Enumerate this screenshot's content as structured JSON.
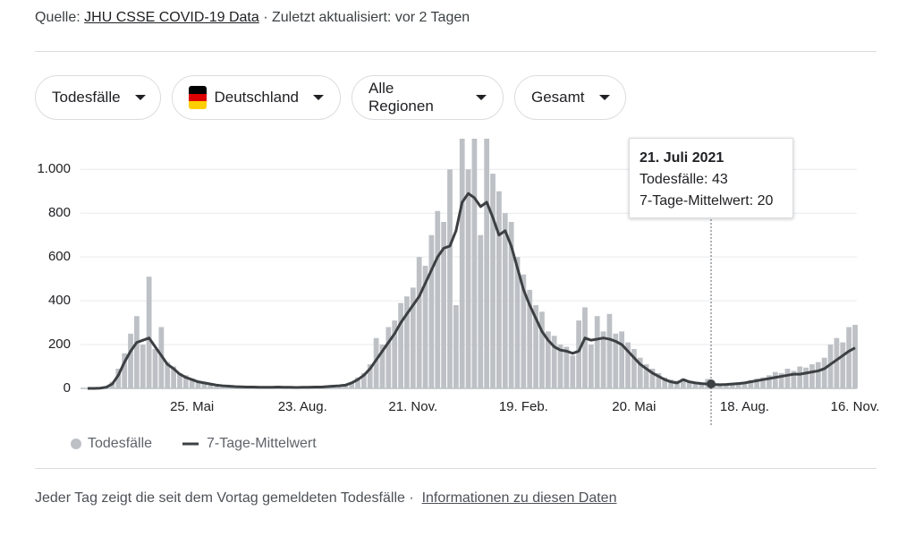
{
  "header": {
    "source_label": "Quelle:",
    "source_link": "JHU CSSE COVID-19 Data",
    "updated": "· Zuletzt aktualisiert: vor 2 Tagen"
  },
  "filters": [
    "Todesfälle",
    "Deutschland",
    "Alle Regionen",
    "Gesamt"
  ],
  "tooltip": {
    "title": "21. Juli 2021",
    "lines": [
      "Todesfälle: 43",
      "7-Tage-Mittelwert: 20"
    ]
  },
  "chart_data": {
    "type": "bar",
    "categories": [
      null,
      null,
      null,
      null,
      null,
      null,
      null,
      null,
      null,
      null,
      null,
      null,
      null,
      null,
      null,
      null,
      null,
      "25. Mai",
      null,
      null,
      null,
      null,
      null,
      null,
      null,
      null,
      null,
      null,
      null,
      null,
      null,
      null,
      null,
      null,
      null,
      "23. Aug.",
      null,
      null,
      null,
      null,
      null,
      null,
      null,
      null,
      null,
      null,
      null,
      null,
      null,
      null,
      null,
      null,
      null,
      "21. Nov.",
      null,
      null,
      null,
      null,
      null,
      null,
      null,
      null,
      null,
      null,
      null,
      null,
      null,
      null,
      null,
      null,
      null,
      "19. Feb.",
      null,
      null,
      null,
      null,
      null,
      null,
      null,
      null,
      null,
      null,
      null,
      null,
      null,
      null,
      null,
      null,
      null,
      "20. Mai",
      null,
      null,
      null,
      null,
      null,
      null,
      null,
      null,
      null,
      null,
      null,
      null,
      null,
      null,
      null,
      null,
      null,
      "18. Aug.",
      null,
      null,
      null,
      null,
      null,
      null,
      null,
      null,
      null,
      null,
      null,
      null,
      null,
      null,
      null,
      null,
      null,
      "16. Nov."
    ],
    "series": [
      {
        "name": "Todesfälle",
        "type": "bar",
        "color": "#bdc1c6",
        "values": [
          0,
          0,
          2,
          8,
          30,
          90,
          160,
          250,
          330,
          200,
          510,
          180,
          280,
          120,
          100,
          70,
          60,
          45,
          35,
          30,
          22,
          18,
          14,
          12,
          9,
          8,
          7,
          6,
          6,
          5,
          6,
          8,
          5,
          6,
          4,
          5,
          6,
          7,
          7,
          9,
          12,
          15,
          18,
          30,
          50,
          70,
          110,
          230,
          200,
          280,
          310,
          390,
          420,
          460,
          600,
          560,
          700,
          810,
          760,
          1000,
          380,
          1140,
          1000,
          1140,
          700,
          1140,
          980,
          900,
          800,
          760,
          600,
          520,
          450,
          380,
          350,
          260,
          240,
          200,
          190,
          150,
          310,
          370,
          200,
          330,
          260,
          340,
          250,
          260,
          210,
          180,
          140,
          110,
          90,
          70,
          50,
          40,
          35,
          45,
          30,
          28,
          25,
          43,
          20,
          18,
          22,
          25,
          28,
          30,
          38,
          45,
          50,
          60,
          75,
          70,
          90,
          80,
          100,
          95,
          110,
          120,
          140,
          200,
          230,
          210,
          280,
          290
        ]
      },
      {
        "name": "7-Tage-Mittelwert",
        "type": "line",
        "color": "#3c4043",
        "values": [
          0,
          0,
          1,
          5,
          20,
          60,
          120,
          170,
          210,
          220,
          230,
          190,
          150,
          110,
          90,
          65,
          50,
          40,
          30,
          25,
          20,
          15,
          12,
          10,
          8,
          7,
          6,
          6,
          5,
          5,
          5,
          6,
          5,
          5,
          4,
          5,
          5,
          6,
          6,
          8,
          10,
          12,
          15,
          25,
          40,
          60,
          90,
          130,
          170,
          210,
          250,
          300,
          340,
          380,
          420,
          480,
          540,
          600,
          640,
          650,
          720,
          850,
          890,
          870,
          830,
          850,
          780,
          700,
          720,
          650,
          550,
          450,
          380,
          320,
          260,
          220,
          190,
          175,
          170,
          160,
          170,
          230,
          220,
          225,
          230,
          225,
          215,
          200,
          170,
          140,
          110,
          90,
          70,
          55,
          40,
          30,
          25,
          40,
          30,
          25,
          22,
          20,
          18,
          17,
          18,
          20,
          22,
          25,
          30,
          35,
          40,
          45,
          50,
          55,
          60,
          65,
          65,
          70,
          75,
          80,
          90,
          110,
          130,
          150,
          170,
          185
        ]
      }
    ],
    "ylim": [
      0,
      1140
    ],
    "yticks": [
      0,
      200,
      400,
      600,
      800,
      {
        "value": 1000,
        "label": "1.000"
      }
    ],
    "grid": true
  },
  "footer": {
    "text": "Jeder Tag zeigt die seit dem Vortag gemeldeten Todesfälle ·",
    "link": "Informationen zu diesen Daten"
  }
}
